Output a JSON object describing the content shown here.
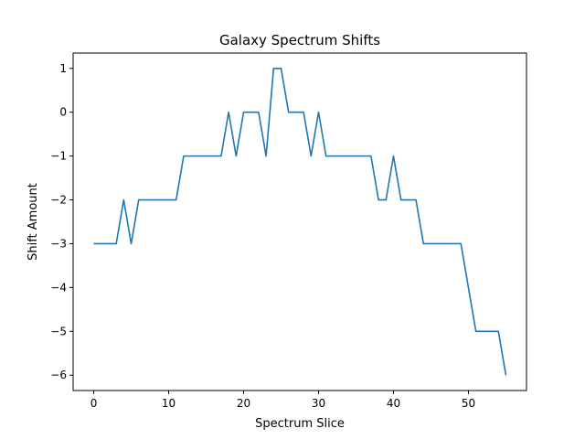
{
  "chart_data": {
    "type": "line",
    "title": "Galaxy Spectrum Shifts",
    "xlabel": "Spectrum Slice",
    "ylabel": "Shift Amount",
    "xlim": [
      -2.75,
      57.75
    ],
    "ylim": [
      -6.35,
      1.35
    ],
    "xticks": [
      0,
      10,
      20,
      30,
      40,
      50
    ],
    "yticks": [
      1,
      0,
      -1,
      -2,
      -3,
      -4,
      -5,
      -6
    ],
    "xtick_labels": [
      "0",
      "10",
      "20",
      "30",
      "40",
      "50"
    ],
    "ytick_labels": [
      "1",
      "0",
      "−1",
      "−2",
      "−3",
      "−4",
      "−5",
      "−6"
    ],
    "grid": false,
    "colors": {
      "line": "#1f77b4",
      "axes": "#000000",
      "background": "#ffffff"
    },
    "series": [
      {
        "x": [
          0,
          1,
          2,
          3,
          4,
          5,
          6,
          7,
          8,
          9,
          10,
          11,
          12,
          13,
          14,
          15,
          16,
          17,
          18,
          19,
          20,
          21,
          22,
          23,
          24,
          25,
          26,
          27,
          28,
          29,
          30,
          31,
          32,
          33,
          34,
          35,
          36,
          37,
          38,
          39,
          40,
          41,
          42,
          43,
          44,
          45,
          46,
          47,
          48,
          49,
          50,
          51,
          52,
          53,
          54,
          55
        ],
        "values": [
          -3,
          -3,
          -3,
          -3,
          -2,
          -3,
          -2,
          -2,
          -2,
          -2,
          -2,
          -2,
          -1,
          -1,
          -1,
          -1,
          -1,
          -1,
          0,
          -1,
          0,
          0,
          0,
          -1,
          1,
          1,
          0,
          0,
          0,
          -1,
          0,
          -1,
          -1,
          -1,
          -1,
          -1,
          -1,
          -1,
          -2,
          -2,
          -1,
          -2,
          -2,
          -2,
          -3,
          -3,
          -3,
          -3,
          -3,
          -3,
          -4,
          -5,
          -5,
          -5,
          -5,
          -6
        ]
      }
    ]
  }
}
